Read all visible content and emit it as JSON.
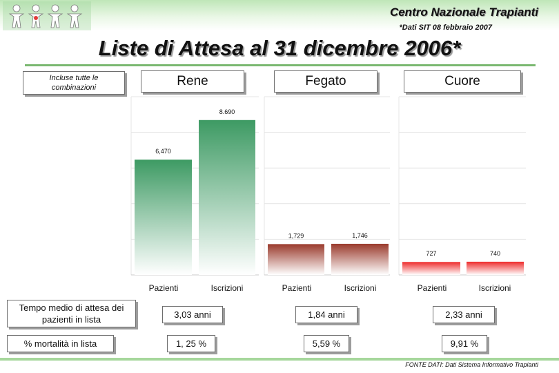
{
  "header": {
    "org_title": "Centro Nazionale Trapianti",
    "data_note": "*Dati SIT 08 febbraio 2007",
    "main_title": "Liste di Attesa al 31 dicembre 2006*"
  },
  "combo_label": "Incluse tutte le combinazioni",
  "organs": [
    {
      "name": "Rene"
    },
    {
      "name": "Fegato"
    },
    {
      "name": "Cuore"
    }
  ],
  "colors": {
    "rene": "#3d9a63",
    "fegato": "#9a3a2c",
    "cuore": "#ee2c2c",
    "header_green": "#bfe6b8",
    "rule_green": "#7ab870"
  },
  "chart_data": [
    {
      "type": "bar",
      "categories": [
        "Pazienti",
        "Iscrizioni"
      ],
      "values": [
        6470,
        8690
      ],
      "labels": [
        "6,470",
        "8.690"
      ],
      "ylim": [
        0,
        10000
      ]
    },
    {
      "type": "bar",
      "categories": [
        "Pazienti",
        "Iscrizioni"
      ],
      "values": [
        1729,
        1746
      ],
      "labels": [
        "1,729",
        "1,746"
      ],
      "ylim": [
        0,
        10000
      ]
    },
    {
      "type": "bar",
      "categories": [
        "Pazienti",
        "Iscrizioni"
      ],
      "values": [
        727,
        740
      ],
      "labels": [
        "727",
        "740"
      ],
      "ylim": [
        0,
        10000
      ]
    }
  ],
  "rows": {
    "wait_label": "Tempo medio di attesa dei pazienti in lista",
    "wait_values": [
      "3,03 anni",
      "1,84 anni",
      "2,33 anni"
    ],
    "mortality_label": "% mortalità in lista",
    "mortality_values": [
      "1, 25 %",
      "5,59 %",
      "9,91 %"
    ]
  },
  "source_note": "FONTE DATI: Dati Sistema Informativo Trapianti"
}
